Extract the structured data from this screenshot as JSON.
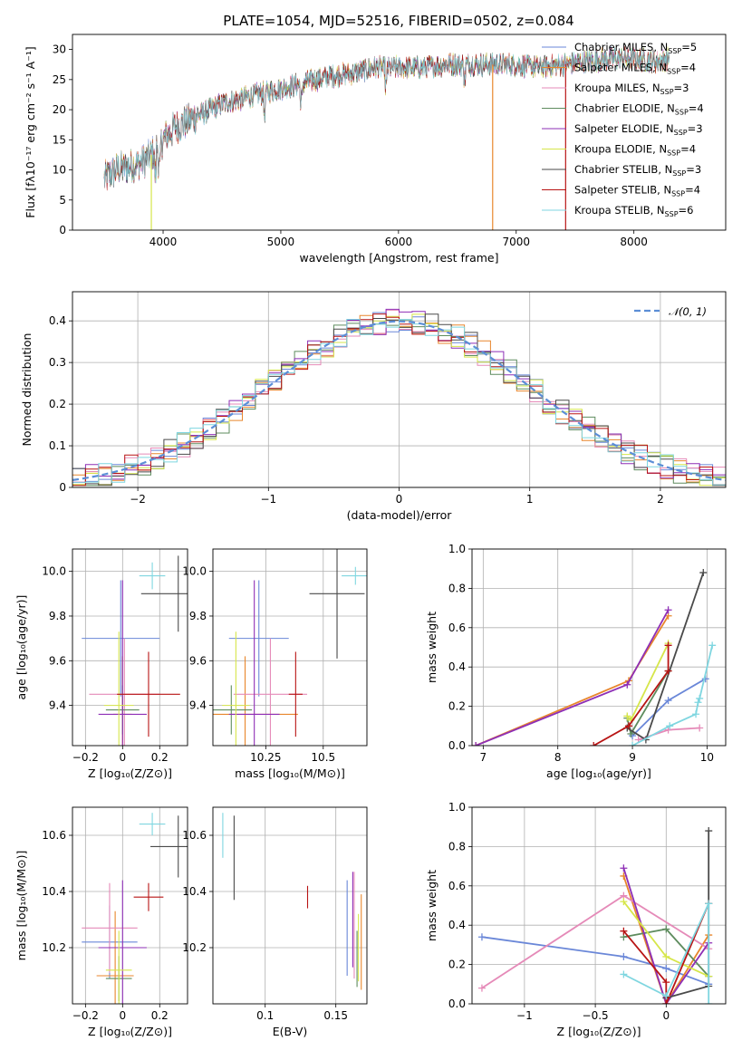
{
  "title": "PLATE=1054, MJD=52516, FIBERID=0502, z=0.084",
  "colors": {
    "blue": "#6a87d8",
    "orange": "#e8862c",
    "pink": "#e58ab8",
    "green": "#5e8c5e",
    "purple": "#8e2fb6",
    "yellow": "#d6e64a",
    "darkgray": "#4a4a4a",
    "red": "#b81414",
    "cyan": "#7fd6e0"
  },
  "chart_data": [
    {
      "id": "spectrum",
      "type": "line",
      "xlabel": "wavelength [Angstrom, rest frame]",
      "ylabel": "Flux [fλ10⁻¹⁷ erg cm⁻² s⁻¹ A⁻¹]",
      "xlim": [
        3230,
        8780
      ],
      "ylim": [
        0,
        32.5
      ],
      "xticks": [
        4000,
        5000,
        6000,
        7000,
        8000
      ],
      "yticks": [
        0,
        5,
        10,
        15,
        20,
        25,
        30
      ],
      "legend_position": "right",
      "series": [
        {
          "name": "Chabrier MILES, N",
          "sub": "SSP",
          "nval": "=5",
          "color": "blue"
        },
        {
          "name": "Salpeter MILES, N",
          "sub": "SSP",
          "nval": "=4",
          "color": "orange"
        },
        {
          "name": "Kroupa MILES, N",
          "sub": "SSP",
          "nval": "=3",
          "color": "pink"
        },
        {
          "name": "Chabrier ELODIE, N",
          "sub": "SSP",
          "nval": "=4",
          "color": "green"
        },
        {
          "name": "Salpeter ELODIE, N",
          "sub": "SSP",
          "nval": "=3",
          "color": "purple"
        },
        {
          "name": "Kroupa ELODIE, N",
          "sub": "SSP",
          "nval": "=4",
          "color": "yellow"
        },
        {
          "name": "Chabrier STELIB, N",
          "sub": "SSP",
          "nval": "=3",
          "color": "darkgray"
        },
        {
          "name": "Salpeter STELIB, N",
          "sub": "SSP",
          "nval": "=4",
          "color": "red"
        },
        {
          "name": "Kroupa STELIB, N",
          "sub": "SSP",
          "nval": "=6",
          "color": "cyan"
        }
      ],
      "continuum": [
        [
          3500,
          8.5
        ],
        [
          3600,
          10.0
        ],
        [
          3700,
          10.5
        ],
        [
          3800,
          11.0
        ],
        [
          3900,
          12.5
        ],
        [
          4000,
          15.0
        ],
        [
          4100,
          17.0
        ],
        [
          4200,
          18.0
        ],
        [
          4300,
          19.0
        ],
        [
          4400,
          20.0
        ],
        [
          4500,
          21.0
        ],
        [
          4700,
          22.0
        ],
        [
          4900,
          23.0
        ],
        [
          5100,
          24.0
        ],
        [
          5200,
          24.5
        ],
        [
          5400,
          25.5
        ],
        [
          5600,
          26.0
        ],
        [
          5800,
          27.0
        ],
        [
          6000,
          27.0
        ],
        [
          6200,
          27.0
        ],
        [
          6400,
          27.5
        ],
        [
          6600,
          27.5
        ],
        [
          6800,
          27.5
        ],
        [
          7000,
          27.5
        ],
        [
          7200,
          27.0
        ],
        [
          7400,
          27.5
        ],
        [
          7600,
          28.0
        ],
        [
          7800,
          28.5
        ],
        [
          8000,
          28.5
        ],
        [
          8200,
          28.0
        ],
        [
          8300,
          28.5
        ]
      ],
      "dropouts": [
        [
          3900,
          0
        ],
        [
          6800,
          0
        ],
        [
          7420,
          0
        ]
      ]
    },
    {
      "id": "residuals",
      "type": "histogram",
      "xlabel": "(data-model)/error",
      "ylabel": "Normed distribution",
      "xlim": [
        -2.5,
        2.5
      ],
      "ylim": [
        0,
        0.47
      ],
      "xticks": [
        -2,
        -1,
        0,
        1,
        2
      ],
      "yticks": [
        0.0,
        0.1,
        0.2,
        0.3,
        0.4
      ],
      "bin_width": 0.1,
      "legend": {
        "label": "𝒩(0, 1)",
        "position": "top-right",
        "color": "#5b8ed6"
      },
      "gaussian": {
        "mean": 0,
        "sigma": 1
      }
    },
    {
      "id": "age-vs-Z",
      "type": "errorbar",
      "xlabel": "Z [log₁₀(Z/Z⊙)]",
      "ylabel": "age  [log₁₀(age/yr)]",
      "xlim": [
        -0.27,
        0.35
      ],
      "ylim": [
        9.22,
        10.1
      ],
      "xticks": [
        -0.2,
        0.0,
        0.2
      ],
      "yticks": [
        9.4,
        9.6,
        9.8,
        10.0
      ],
      "points": [
        {
          "color": "blue",
          "x": -0.01,
          "xerr": 0.21,
          "y": 9.7,
          "yerr": 0.26
        },
        {
          "color": "orange",
          "x": 0.0,
          "xerr": 0.05,
          "y": 9.36,
          "yerr": 0.26
        },
        {
          "color": "pink",
          "x": 0.01,
          "xerr": 0.19,
          "y": 9.45,
          "yerr": 0.25
        },
        {
          "color": "green",
          "x": 0.0,
          "xerr": 0.09,
          "y": 9.38,
          "yerr": 0.11
        },
        {
          "color": "purple",
          "x": 0.0,
          "xerr": 0.13,
          "y": 9.36,
          "yerr": 0.6
        },
        {
          "color": "yellow",
          "x": -0.02,
          "xerr": 0.08,
          "y": 9.4,
          "yerr": 0.33
        },
        {
          "color": "darkgray",
          "x": 0.3,
          "xerr": 0.2,
          "y": 9.9,
          "yerr": 0.17
        },
        {
          "color": "red",
          "x": 0.14,
          "xerr": 0.17,
          "y": 9.45,
          "yerr": 0.19
        },
        {
          "color": "cyan",
          "x": 0.16,
          "xerr": 0.07,
          "y": 9.98,
          "yerr": 0.06
        }
      ]
    },
    {
      "id": "age-vs-mass",
      "type": "errorbar",
      "xlabel": "mass [log₁₀(M/M⊙)]",
      "ylabel": "",
      "xlim": [
        10.02,
        10.69
      ],
      "ylim": [
        9.22,
        10.1
      ],
      "xticks": [
        10.25,
        10.5
      ],
      "yticks": [
        9.4,
        9.6,
        9.8,
        10.0
      ],
      "points": [
        {
          "color": "blue",
          "x": 10.22,
          "xerr": 0.13,
          "y": 9.7,
          "yerr": 0.26
        },
        {
          "color": "orange",
          "x": 10.16,
          "xerr": 0.23,
          "y": 9.36,
          "yerr": 0.26
        },
        {
          "color": "pink",
          "x": 10.27,
          "xerr": 0.16,
          "y": 9.45,
          "yerr": 0.25
        },
        {
          "color": "green",
          "x": 10.1,
          "xerr": 0.09,
          "y": 9.38,
          "yerr": 0.11
        },
        {
          "color": "purple",
          "x": 10.2,
          "xerr": 0.11,
          "y": 9.36,
          "yerr": 0.6
        },
        {
          "color": "yellow",
          "x": 10.12,
          "xerr": 0.06,
          "y": 9.4,
          "yerr": 0.33
        },
        {
          "color": "darkgray",
          "x": 10.56,
          "xerr": 0.12,
          "y": 9.9,
          "yerr": 0.29
        },
        {
          "color": "red",
          "x": 10.38,
          "xerr": 0.03,
          "y": 9.45,
          "yerr": 0.19
        },
        {
          "color": "cyan",
          "x": 10.64,
          "xerr": 0.06,
          "y": 9.98,
          "yerr": 0.04
        }
      ]
    },
    {
      "id": "weight-vs-age",
      "type": "line",
      "xlabel": "age  [log₁₀(age/yr)]",
      "ylabel": "mass weight",
      "xlim": [
        6.85,
        10.25
      ],
      "ylim": [
        0.0,
        1.0
      ],
      "xticks": [
        7,
        8,
        9,
        10
      ],
      "yticks": [
        0.0,
        0.2,
        0.4,
        0.6,
        0.8,
        1.0
      ],
      "series": [
        {
          "color": "blue",
          "points": [
            [
              9.0,
              0.05
            ],
            [
              9.48,
              0.23
            ],
            [
              9.98,
              0.34
            ]
          ]
        },
        {
          "color": "orange",
          "points": [
            [
              6.9,
              0.0
            ],
            [
              8.95,
              0.33
            ],
            [
              9.48,
              0.66
            ]
          ]
        },
        {
          "color": "pink",
          "points": [
            [
              9.08,
              0.03
            ],
            [
              9.48,
              0.08
            ],
            [
              9.9,
              0.09
            ]
          ]
        },
        {
          "color": "green",
          "points": [
            [
              8.93,
              0.14
            ],
            [
              8.98,
              0.06
            ],
            [
              9.48,
              0.38
            ]
          ]
        },
        {
          "color": "purple",
          "points": [
            [
              6.9,
              0.0
            ],
            [
              8.93,
              0.31
            ],
            [
              9.48,
              0.69
            ]
          ]
        },
        {
          "color": "yellow",
          "points": [
            [
              8.93,
              0.15
            ],
            [
              8.98,
              0.13
            ],
            [
              9.48,
              0.52
            ]
          ]
        },
        {
          "color": "darkgray",
          "points": [
            [
              8.93,
              0.09
            ],
            [
              9.18,
              0.03
            ],
            [
              9.95,
              0.88
            ]
          ]
        },
        {
          "color": "red",
          "points": [
            [
              8.48,
              0.0
            ],
            [
              8.95,
              0.1
            ],
            [
              9.48,
              0.38
            ],
            [
              9.48,
              0.51
            ]
          ]
        },
        {
          "color": "cyan",
          "points": [
            [
              9.0,
              0.0
            ],
            [
              9.5,
              0.1
            ],
            [
              9.85,
              0.16
            ],
            [
              9.88,
              0.22
            ],
            [
              9.9,
              0.24
            ],
            [
              10.07,
              0.51
            ]
          ]
        }
      ]
    },
    {
      "id": "mass-vs-Z",
      "type": "errorbar",
      "xlabel": "Z [log₁₀(Z/Z⊙)]",
      "ylabel": "mass [log₁₀(M/M⊙)]",
      "xlim": [
        -0.27,
        0.35
      ],
      "ylim": [
        10.0,
        10.7
      ],
      "xticks": [
        -0.2,
        0.0,
        0.2
      ],
      "yticks": [
        10.2,
        10.4,
        10.6
      ],
      "points": [
        {
          "color": "blue",
          "x": -0.07,
          "xerr": 0.15,
          "y": 10.22,
          "yerr": 0.13
        },
        {
          "color": "orange",
          "x": -0.04,
          "xerr": 0.1,
          "y": 10.1,
          "yerr": 0.23
        },
        {
          "color": "pink",
          "x": -0.07,
          "xerr": 0.15,
          "y": 10.27,
          "yerr": 0.16
        },
        {
          "color": "green",
          "x": -0.02,
          "xerr": 0.07,
          "y": 10.09,
          "yerr": 0.08
        },
        {
          "color": "purple",
          "x": 0.0,
          "xerr": 0.13,
          "y": 10.2,
          "yerr": 0.24
        },
        {
          "color": "yellow",
          "x": -0.02,
          "xerr": 0.07,
          "y": 10.12,
          "yerr": 0.14
        },
        {
          "color": "darkgray",
          "x": 0.3,
          "xerr": 0.15,
          "y": 10.56,
          "yerr": 0.11
        },
        {
          "color": "red",
          "x": 0.14,
          "xerr": 0.08,
          "y": 10.38,
          "yerr": 0.05
        },
        {
          "color": "cyan",
          "x": 0.16,
          "xerr": 0.07,
          "y": 10.64,
          "yerr": 0.04
        }
      ]
    },
    {
      "id": "mass-vs-EBV",
      "type": "errorbar",
      "xlabel": "E(B-V)",
      "ylabel": "",
      "xlim": [
        0.063,
        0.172
      ],
      "ylim": [
        10.0,
        10.7
      ],
      "xticks": [
        0.1,
        0.15
      ],
      "yticks": [
        10.2,
        10.4,
        10.6
      ],
      "points": [
        {
          "color": "blue",
          "x": 0.158,
          "xerr": 0.0,
          "y": 10.27,
          "yerr": 0.17
        },
        {
          "color": "orange",
          "x": 0.168,
          "xerr": 0.0,
          "y": 10.22,
          "yerr": 0.17
        },
        {
          "color": "pink",
          "x": 0.163,
          "xerr": 0.0,
          "y": 10.28,
          "yerr": 0.19
        },
        {
          "color": "green",
          "x": 0.165,
          "xerr": 0.0,
          "y": 10.16,
          "yerr": 0.1
        },
        {
          "color": "purple",
          "x": 0.162,
          "xerr": 0.0,
          "y": 10.3,
          "yerr": 0.17
        },
        {
          "color": "yellow",
          "x": 0.166,
          "xerr": 0.0,
          "y": 10.2,
          "yerr": 0.12
        },
        {
          "color": "darkgray",
          "x": 0.078,
          "xerr": 0.0,
          "y": 10.52,
          "yerr": 0.15
        },
        {
          "color": "red",
          "x": 0.13,
          "xerr": 0.0,
          "y": 10.38,
          "yerr": 0.04
        },
        {
          "color": "cyan",
          "x": 0.07,
          "xerr": 0.0,
          "y": 10.6,
          "yerr": 0.08
        }
      ]
    },
    {
      "id": "weight-vs-Z",
      "type": "line",
      "xlabel": "Z [log₁₀(Z/Z⊙)]",
      "ylabel": "mass weight",
      "xlim": [
        -1.37,
        0.42
      ],
      "ylim": [
        0.0,
        1.0
      ],
      "xticks": [
        -1.0,
        -0.5,
        0.0
      ],
      "yticks": [
        0.0,
        0.2,
        0.4,
        0.6,
        0.8,
        1.0
      ],
      "series": [
        {
          "color": "blue",
          "points": [
            [
              -1.3,
              0.34
            ],
            [
              -0.3,
              0.24
            ],
            [
              0.0,
              0.18
            ],
            [
              0.3,
              0.1
            ]
          ]
        },
        {
          "color": "orange",
          "points": [
            [
              -0.3,
              0.65
            ],
            [
              0.0,
              0.0
            ],
            [
              0.3,
              0.35
            ]
          ]
        },
        {
          "color": "pink",
          "points": [
            [
              -1.3,
              0.08
            ],
            [
              -0.3,
              0.55
            ],
            [
              0.3,
              0.28
            ]
          ]
        },
        {
          "color": "green",
          "points": [
            [
              -0.3,
              0.34
            ],
            [
              0.0,
              0.38
            ],
            [
              0.3,
              0.14
            ]
          ]
        },
        {
          "color": "purple",
          "points": [
            [
              -0.3,
              0.69
            ],
            [
              0.0,
              0.0
            ],
            [
              0.3,
              0.31
            ]
          ]
        },
        {
          "color": "yellow",
          "points": [
            [
              -0.3,
              0.52
            ],
            [
              0.0,
              0.24
            ],
            [
              0.3,
              0.14
            ]
          ]
        },
        {
          "color": "darkgray",
          "points": [
            [
              0.0,
              0.03
            ],
            [
              0.3,
              0.09
            ],
            [
              0.3,
              0.88
            ]
          ]
        },
        {
          "color": "red",
          "points": [
            [
              -0.3,
              0.37
            ],
            [
              0.0,
              0.11
            ],
            [
              0.0,
              0.0
            ],
            [
              0.3,
              0.51
            ]
          ]
        },
        {
          "color": "cyan",
          "points": [
            [
              -0.3,
              0.15
            ],
            [
              0.0,
              0.04
            ],
            [
              0.3,
              0.51
            ],
            [
              0.3,
              0.0
            ]
          ]
        }
      ]
    }
  ]
}
